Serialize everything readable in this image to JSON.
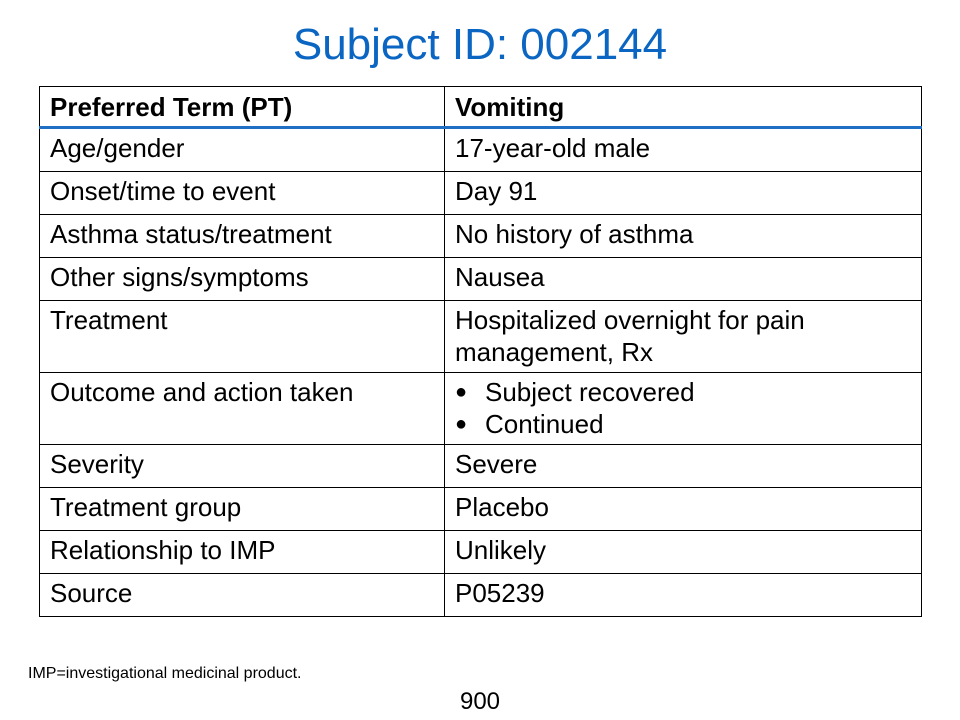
{
  "title": "Subject ID: 002144",
  "table": {
    "header": {
      "label": "Preferred Term (PT)",
      "value": "Vomiting"
    },
    "rows": [
      {
        "label": "Age/gender",
        "value": "17-year-old male"
      },
      {
        "label": "Onset/time to event",
        "value": "Day 91"
      },
      {
        "label": "Asthma status/treatment",
        "value": "No history of asthma"
      },
      {
        "label": "Other signs/symptoms",
        "value": "Nausea"
      },
      {
        "label": "Treatment",
        "value": "Hospitalized overnight for pain management, Rx"
      },
      {
        "label": "Outcome and action taken",
        "bullets": [
          "Subject recovered",
          "Continued"
        ]
      },
      {
        "label": "Severity",
        "value": "Severe"
      },
      {
        "label": "Treatment group",
        "value": "Placebo"
      },
      {
        "label": "Relationship to IMP",
        "value": "Unlikely"
      },
      {
        "label": "Source",
        "value": "P05239"
      }
    ]
  },
  "bullet_glyph": "●",
  "footnote": "IMP=investigational medicinal product.",
  "page_number": "900",
  "colors": {
    "title": "#0a66c2",
    "header_rule": "#1f6fc5"
  }
}
